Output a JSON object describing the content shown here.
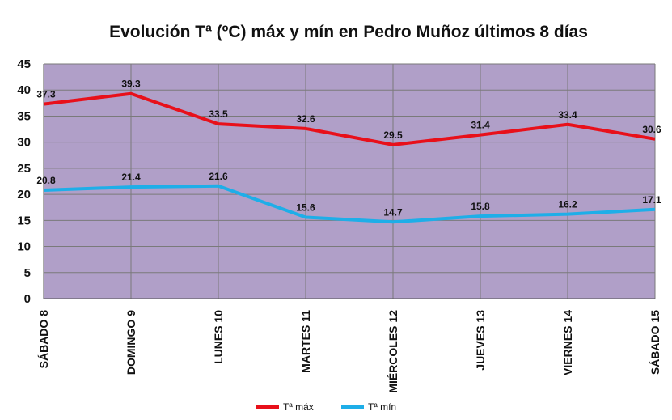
{
  "chart_data": {
    "type": "line",
    "title": "Evolución Tª (ºC) máx y mín en Pedro Muñoz últimos 8 días",
    "categories": [
      "SÁBADO 8",
      "DOMINGO 9",
      "LUNES 10",
      "MARTES 11",
      "MIÉRCOLES 12",
      "JUEVES 13",
      "VIERNES 14",
      "SÁBADO 15"
    ],
    "series": [
      {
        "name": "Tª máx",
        "color": "#e8101a",
        "values": [
          37.3,
          39.3,
          33.5,
          32.6,
          29.5,
          31.4,
          33.4,
          30.6
        ]
      },
      {
        "name": "Tª mín",
        "color": "#1eaee8",
        "values": [
          20.8,
          21.4,
          21.6,
          15.6,
          14.7,
          15.8,
          16.2,
          17.1
        ]
      }
    ],
    "ylim": [
      0,
      45
    ],
    "yticks": [
      0,
      5,
      10,
      15,
      20,
      25,
      30,
      35,
      40,
      45
    ],
    "grid": true,
    "legend": "bottom",
    "plot_background": "#b09fc8"
  }
}
